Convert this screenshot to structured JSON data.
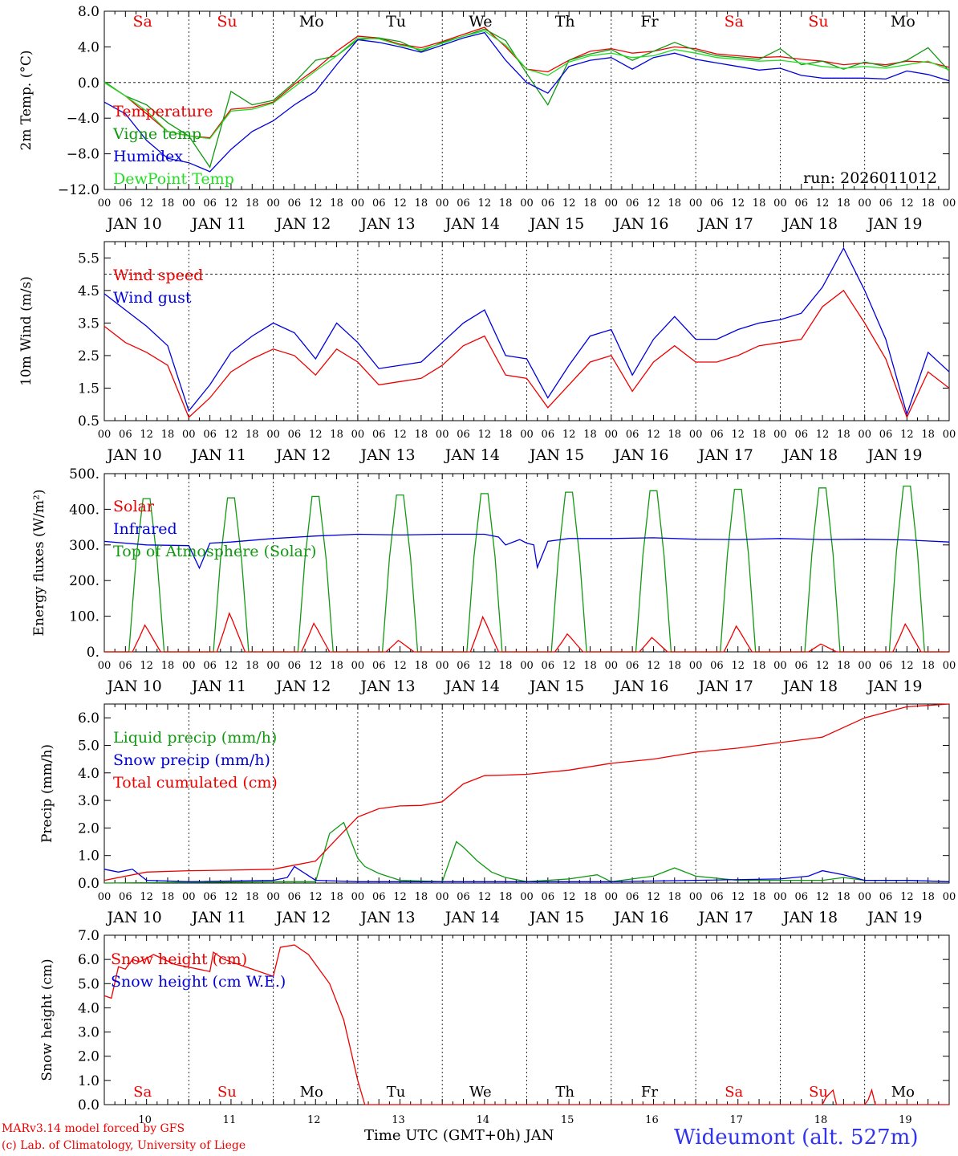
{
  "header": {
    "run_label": "run: 2026011012"
  },
  "footer": {
    "model": "MARv3.14 model forced by GFS",
    "lab": "(c) Lab. of Climatology, University of Liege",
    "axis_title": "Time UTC (GMT+0h) JAN",
    "station": "Wideumont (alt. 527m)"
  },
  "timeline": {
    "days": [
      "JAN 10",
      "JAN 11",
      "JAN 12",
      "JAN 13",
      "JAN 14",
      "JAN 15",
      "JAN 16",
      "JAN 17",
      "JAN 18",
      "JAN 19"
    ],
    "day_numbers": [
      "10",
      "11",
      "12",
      "13",
      "14",
      "15",
      "16",
      "17",
      "18",
      "19"
    ],
    "weekdays": [
      "Sa",
      "Su",
      "Mo",
      "Tu",
      "We",
      "Th",
      "Fr",
      "Sa",
      "Su",
      "Mo"
    ],
    "weekend_flags": [
      true,
      true,
      false,
      false,
      false,
      false,
      false,
      true,
      true,
      false
    ],
    "hour_ticks": [
      "00",
      "06",
      "12",
      "18"
    ],
    "hours_total": 240
  },
  "colors": {
    "red": "#ee0000",
    "green": "#119911",
    "blue": "#0000dd",
    "lightgreen": "#22dd22",
    "weekday": "#000000"
  },
  "chart_data": [
    {
      "id": "temperature",
      "type": "line",
      "ylabel": "2m Temp. (°C)",
      "ylim": [
        -12,
        8
      ],
      "yticks": [
        8,
        4,
        0,
        -4,
        -8,
        -12
      ],
      "ytick_labels": [
        "8.0",
        "4.0",
        "0.0",
        "−4.0",
        "−8.0",
        "−12.0"
      ],
      "ref_line": 0,
      "legend": [
        "Temperature",
        "Vigne temp",
        "Humidex",
        "DewPoint Temp"
      ],
      "x_hours": [
        0,
        6,
        12,
        18,
        24,
        30,
        36,
        42,
        48,
        54,
        60,
        66,
        72,
        78,
        84,
        90,
        96,
        102,
        108,
        114,
        120,
        126,
        132,
        138,
        144,
        150,
        156,
        162,
        168,
        174,
        180,
        186,
        192,
        198,
        204,
        210,
        216,
        222,
        228,
        234,
        240
      ],
      "series": [
        {
          "name": "Temperature",
          "color": "red",
          "values": [
            0,
            -1.5,
            -3.5,
            -5.5,
            -6,
            -6.2,
            -3,
            -2.8,
            -2.2,
            -0.2,
            1.5,
            3.5,
            5.2,
            5.0,
            4.3,
            3.9,
            4.6,
            5.4,
            6.2,
            4,
            1.5,
            1.2,
            2.5,
            3.5,
            3.8,
            3.3,
            3.5,
            4.0,
            3.8,
            3.2,
            3.0,
            2.8,
            2.9,
            2.6,
            2.4,
            2.0,
            2.2,
            2.0,
            2.4,
            2.3,
            1.7
          ]
        },
        {
          "name": "Vigne temp",
          "color": "green",
          "values": [
            0.1,
            -1.5,
            -2.5,
            -4.5,
            -6,
            -9.5,
            -1,
            -2.5,
            -2,
            0,
            2.5,
            3,
            4.8,
            5.0,
            4.6,
            3.5,
            4.5,
            5.2,
            6.0,
            4.7,
            1,
            -2.5,
            2.5,
            3.2,
            3.7,
            2.5,
            3.5,
            4.5,
            3.6,
            3.0,
            2.8,
            2.6,
            3.8,
            2.0,
            2.4,
            1.5,
            2.3,
            1.8,
            2.5,
            3.9,
            1.3
          ]
        },
        {
          "name": "Humidex",
          "color": "blue",
          "values": [
            -2.2,
            -3.5,
            -6.5,
            -8.5,
            -9,
            -10,
            -7.5,
            -5.5,
            -4.3,
            -2.5,
            -1,
            2,
            4.8,
            4.5,
            4.0,
            3.4,
            4.2,
            5.0,
            5.6,
            2.5,
            0,
            -1.2,
            1.8,
            2.5,
            2.8,
            1.5,
            2.8,
            3.3,
            2.6,
            2.2,
            1.8,
            1.4,
            1.6,
            0.8,
            0.5,
            0.5,
            0.5,
            0.4,
            1.3,
            0.9,
            0.2
          ]
        },
        {
          "name": "DewPoint Temp",
          "color": "lightgreen",
          "values": [
            0,
            -1.5,
            -3.2,
            -5.5,
            -6,
            -6.3,
            -3.2,
            -3,
            -2.3,
            -0.5,
            1.3,
            3,
            5.0,
            4.9,
            4.2,
            3.7,
            4.4,
            5.2,
            5.8,
            4.2,
            1.5,
            0.8,
            2.3,
            3.0,
            3.3,
            2.8,
            3.0,
            3.7,
            3.3,
            2.8,
            2.6,
            2.4,
            2.5,
            2.2,
            1.8,
            1.6,
            1.8,
            1.6,
            2.0,
            2.4,
            1.4
          ]
        }
      ]
    },
    {
      "id": "wind",
      "type": "line",
      "ylabel": "10m Wind (m/s)",
      "ylim": [
        0.5,
        6
      ],
      "yticks": [
        5.5,
        4.5,
        3.5,
        2.5,
        1.5,
        0.5
      ],
      "ytick_labels": [
        "5.5",
        "4.5",
        "3.5",
        "2.5",
        "1.5",
        "0.5"
      ],
      "ref_line": 5,
      "legend": [
        "Wind speed",
        "Wind gust"
      ],
      "x_hours": [
        0,
        6,
        12,
        18,
        24,
        30,
        36,
        42,
        48,
        54,
        60,
        66,
        72,
        78,
        84,
        90,
        96,
        102,
        108,
        114,
        120,
        126,
        132,
        138,
        144,
        150,
        156,
        162,
        168,
        174,
        180,
        186,
        192,
        198,
        204,
        210,
        216,
        222,
        228,
        234,
        240
      ],
      "series": [
        {
          "name": "Wind speed",
          "color": "red",
          "values": [
            3.4,
            2.9,
            2.6,
            2.2,
            0.6,
            1.2,
            2.0,
            2.4,
            2.7,
            2.5,
            1.9,
            2.7,
            2.3,
            1.6,
            1.7,
            1.8,
            2.2,
            2.8,
            3.1,
            1.9,
            1.8,
            0.9,
            1.6,
            2.3,
            2.5,
            1.4,
            2.3,
            2.8,
            2.3,
            2.3,
            2.5,
            2.8,
            2.9,
            3.0,
            4.0,
            4.5,
            3.5,
            2.4,
            0.6,
            2.0,
            1.5
          ]
        },
        {
          "name": "Wind gust",
          "color": "blue",
          "values": [
            4.4,
            3.9,
            3.4,
            2.8,
            0.8,
            1.6,
            2.6,
            3.1,
            3.5,
            3.2,
            2.4,
            3.5,
            2.9,
            2.1,
            2.2,
            2.3,
            2.9,
            3.5,
            3.9,
            2.5,
            2.4,
            1.2,
            2.2,
            3.1,
            3.3,
            1.9,
            3.0,
            3.7,
            3.0,
            3.0,
            3.3,
            3.5,
            3.6,
            3.8,
            4.6,
            5.8,
            4.5,
            3.0,
            0.7,
            2.6,
            2.0
          ]
        }
      ]
    },
    {
      "id": "energy",
      "type": "line",
      "ylabel": "Energy fluxes (W/m²)",
      "ylim": [
        0,
        500
      ],
      "yticks": [
        500,
        400,
        300,
        200,
        100,
        0
      ],
      "ytick_labels": [
        "500.",
        "400.",
        "300.",
        "200.",
        "100.",
        "0."
      ],
      "legend": [
        "Solar",
        "Infrared",
        "Top of Atmosphere (Solar)"
      ],
      "daily_peaks_toa": [
        430,
        432,
        436,
        440,
        444,
        448,
        452,
        456,
        460,
        465
      ],
      "daily_peaks_solar": [
        75,
        108,
        80,
        32,
        98,
        50,
        40,
        72,
        22,
        78
      ],
      "infrared": {
        "x_hours": [
          0,
          12,
          24,
          27,
          30,
          36,
          48,
          60,
          72,
          84,
          96,
          108,
          112,
          114,
          118,
          120,
          122,
          123,
          126,
          132,
          144,
          156,
          168,
          180,
          192,
          204,
          216,
          228,
          240
        ],
        "values": [
          310,
          300,
          298,
          235,
          305,
          308,
          318,
          325,
          330,
          328,
          330,
          330,
          322,
          300,
          315,
          305,
          300,
          237,
          310,
          318,
          318,
          320,
          316,
          315,
          318,
          315,
          316,
          314,
          308
        ]
      },
      "series_names": {
        "solar": "Solar",
        "infrared": "Infrared",
        "toa": "Top of Atmosphere (Solar)"
      }
    },
    {
      "id": "precip",
      "type": "line",
      "ylabel": "Precip (mm/h)",
      "ylim": [
        0,
        6.5
      ],
      "yticks": [
        6,
        5,
        4,
        3,
        2,
        1,
        0
      ],
      "ytick_labels": [
        "6.0",
        "5.0",
        "4.0",
        "3.0",
        "2.0",
        "1.0",
        "0.0"
      ],
      "legend": [
        "Liquid precip (mm/h)",
        "Snow precip (mm/h)",
        "Total cumulated (cm)"
      ],
      "series": [
        {
          "name": "Liquid precip (mm/h)",
          "color": "green",
          "x_hours": [
            0,
            48,
            60,
            64,
            68,
            72,
            74,
            78,
            84,
            96,
            100,
            102,
            106,
            110,
            114,
            120,
            132,
            140,
            144,
            156,
            162,
            168,
            180,
            192,
            204,
            210,
            216,
            228,
            240
          ],
          "values": [
            0,
            0.05,
            0.05,
            1.8,
            2.2,
            0.9,
            0.6,
            0.35,
            0.1,
            0.05,
            1.5,
            1.3,
            0.8,
            0.4,
            0.2,
            0.05,
            0.15,
            0.3,
            0.05,
            0.25,
            0.55,
            0.25,
            0.1,
            0.1,
            0.1,
            0.2,
            0.1,
            0.1,
            0.05
          ]
        },
        {
          "name": "Snow precip (mm/h)",
          "color": "blue",
          "x_hours": [
            0,
            4,
            8,
            12,
            24,
            48,
            52,
            54,
            60,
            72,
            96,
            144,
            192,
            200,
            204,
            210,
            216,
            228,
            240
          ],
          "values": [
            0.5,
            0.4,
            0.5,
            0.1,
            0.05,
            0.1,
            0.2,
            0.6,
            0.1,
            0.05,
            0.05,
            0.05,
            0.15,
            0.25,
            0.45,
            0.3,
            0.1,
            0.1,
            0.05
          ]
        },
        {
          "name": "Total cumulated (cm)",
          "color": "red",
          "x_hours": [
            0,
            12,
            24,
            36,
            48,
            54,
            60,
            66,
            72,
            78,
            84,
            90,
            96,
            102,
            108,
            114,
            120,
            132,
            144,
            156,
            168,
            180,
            192,
            204,
            216,
            228,
            240
          ],
          "values": [
            0.1,
            0.4,
            0.45,
            0.47,
            0.5,
            0.65,
            0.8,
            1.6,
            2.4,
            2.7,
            2.8,
            2.82,
            2.95,
            3.6,
            3.9,
            3.92,
            3.95,
            4.1,
            4.35,
            4.5,
            4.75,
            4.9,
            5.1,
            5.3,
            6.0,
            6.4,
            6.5
          ]
        }
      ]
    },
    {
      "id": "snow",
      "type": "line",
      "ylabel": "Snow height (cm)",
      "ylim": [
        0,
        7
      ],
      "yticks": [
        7,
        6,
        5,
        4,
        3,
        2,
        1,
        0
      ],
      "ytick_labels": [
        "7.0",
        "6.0",
        "5.0",
        "4.0",
        "3.0",
        "2.0",
        "1.0",
        "0.0"
      ],
      "legend": [
        "Snow height (cm)",
        "Snow height (cm W.E.)"
      ],
      "series": [
        {
          "name": "Snow height (cm)",
          "color": "red",
          "x_hours": [
            0,
            2,
            4,
            6,
            8,
            10,
            14,
            20,
            30,
            31,
            34,
            42,
            48,
            50,
            54,
            58,
            60,
            64,
            68,
            72,
            74,
            204,
            205,
            207,
            208,
            216,
            217,
            218,
            219,
            240
          ],
          "values": [
            4.5,
            4.4,
            5.7,
            5.6,
            6.0,
            5.9,
            6.2,
            5.8,
            5.5,
            6.3,
            6.0,
            5.6,
            5.3,
            6.5,
            6.6,
            6.2,
            5.8,
            5.0,
            3.5,
            1.0,
            0,
            0,
            0.3,
            0.6,
            0,
            0,
            0.2,
            0.6,
            0,
            0
          ]
        }
      ]
    }
  ]
}
